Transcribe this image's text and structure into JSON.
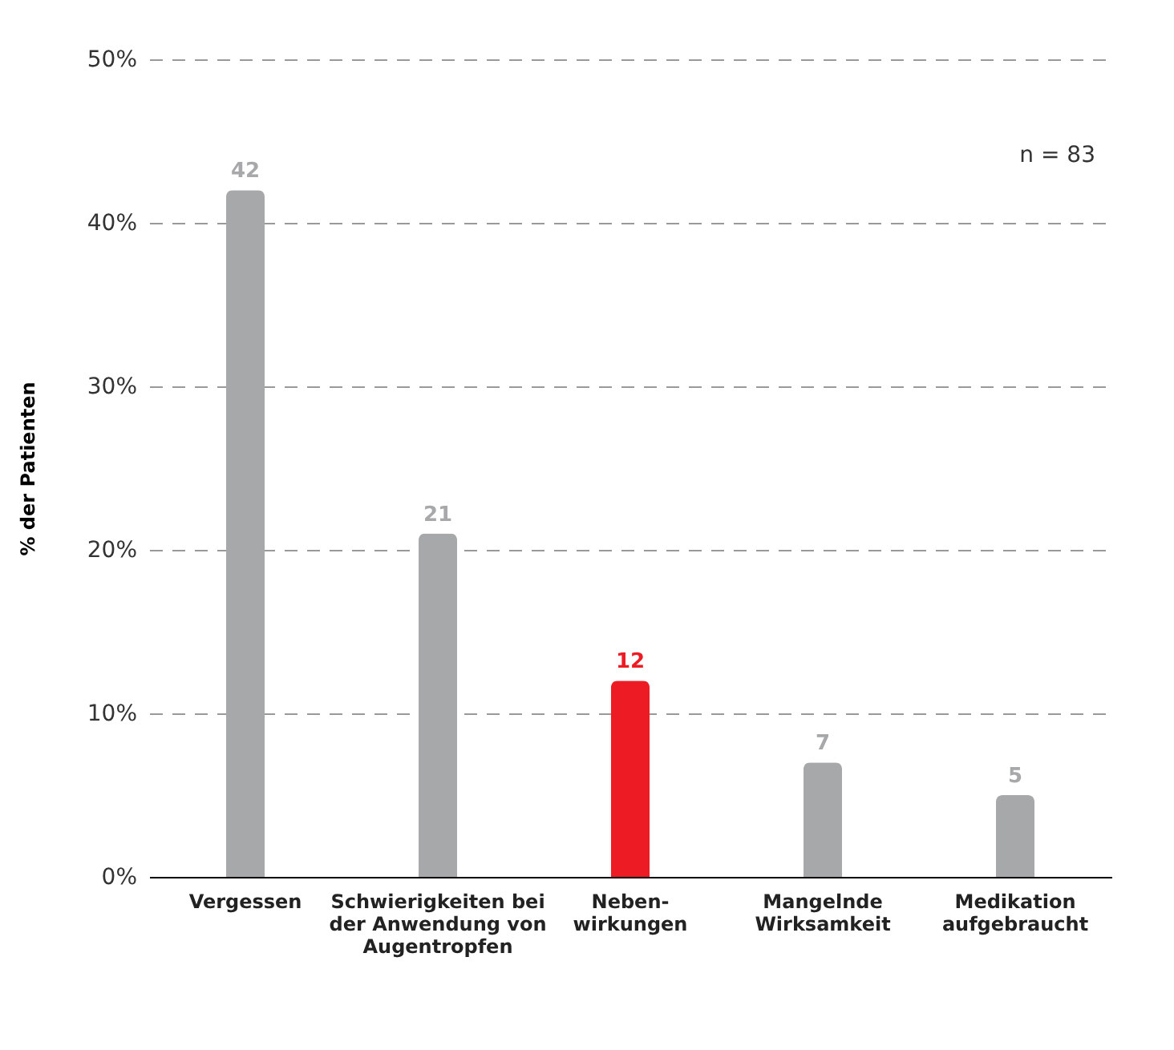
{
  "chart_data": {
    "type": "bar",
    "ylabel": "% der Patienten",
    "categories": [
      "Vergessen",
      "Schwierigkeiten bei\nder Anwendung von\nAugentropfen",
      "Neben-\nwirkungen",
      "Mangelnde\nWirksamkeit",
      "Medikation\naufgebraucht"
    ],
    "values": [
      42,
      21,
      12,
      7,
      5
    ],
    "colors": [
      "#a7a8aa",
      "#a7a8aa",
      "#ed1c24",
      "#a7a8aa",
      "#a7a8aa"
    ],
    "ylim": [
      0,
      50
    ],
    "yticks": [
      {
        "value": 0,
        "label": "0%"
      },
      {
        "value": 10,
        "label": "10%"
      },
      {
        "value": 20,
        "label": "20%"
      },
      {
        "value": 30,
        "label": "30%"
      },
      {
        "value": 40,
        "label": "40%"
      },
      {
        "value": 50,
        "label": "50%"
      }
    ],
    "grid": "y",
    "data_labels": true,
    "annotations": [
      "n = 83"
    ]
  }
}
